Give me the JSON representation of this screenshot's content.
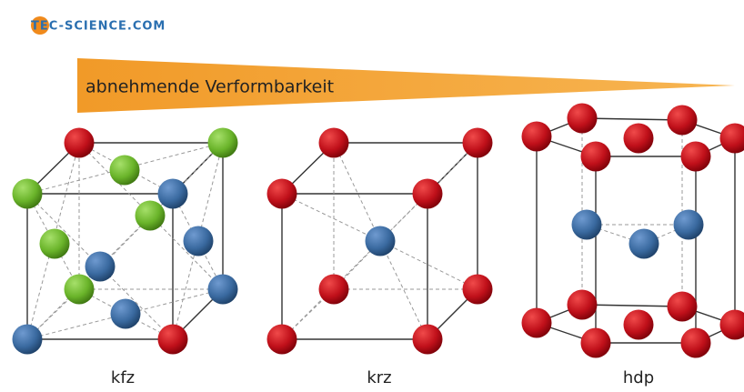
{
  "logo": "TEC-SCIENCE.COM",
  "banner": "abnehmende Verformbarkeit",
  "structures": [
    {
      "label": "kfz"
    },
    {
      "label": "krz"
    },
    {
      "label": "hdp"
    }
  ]
}
